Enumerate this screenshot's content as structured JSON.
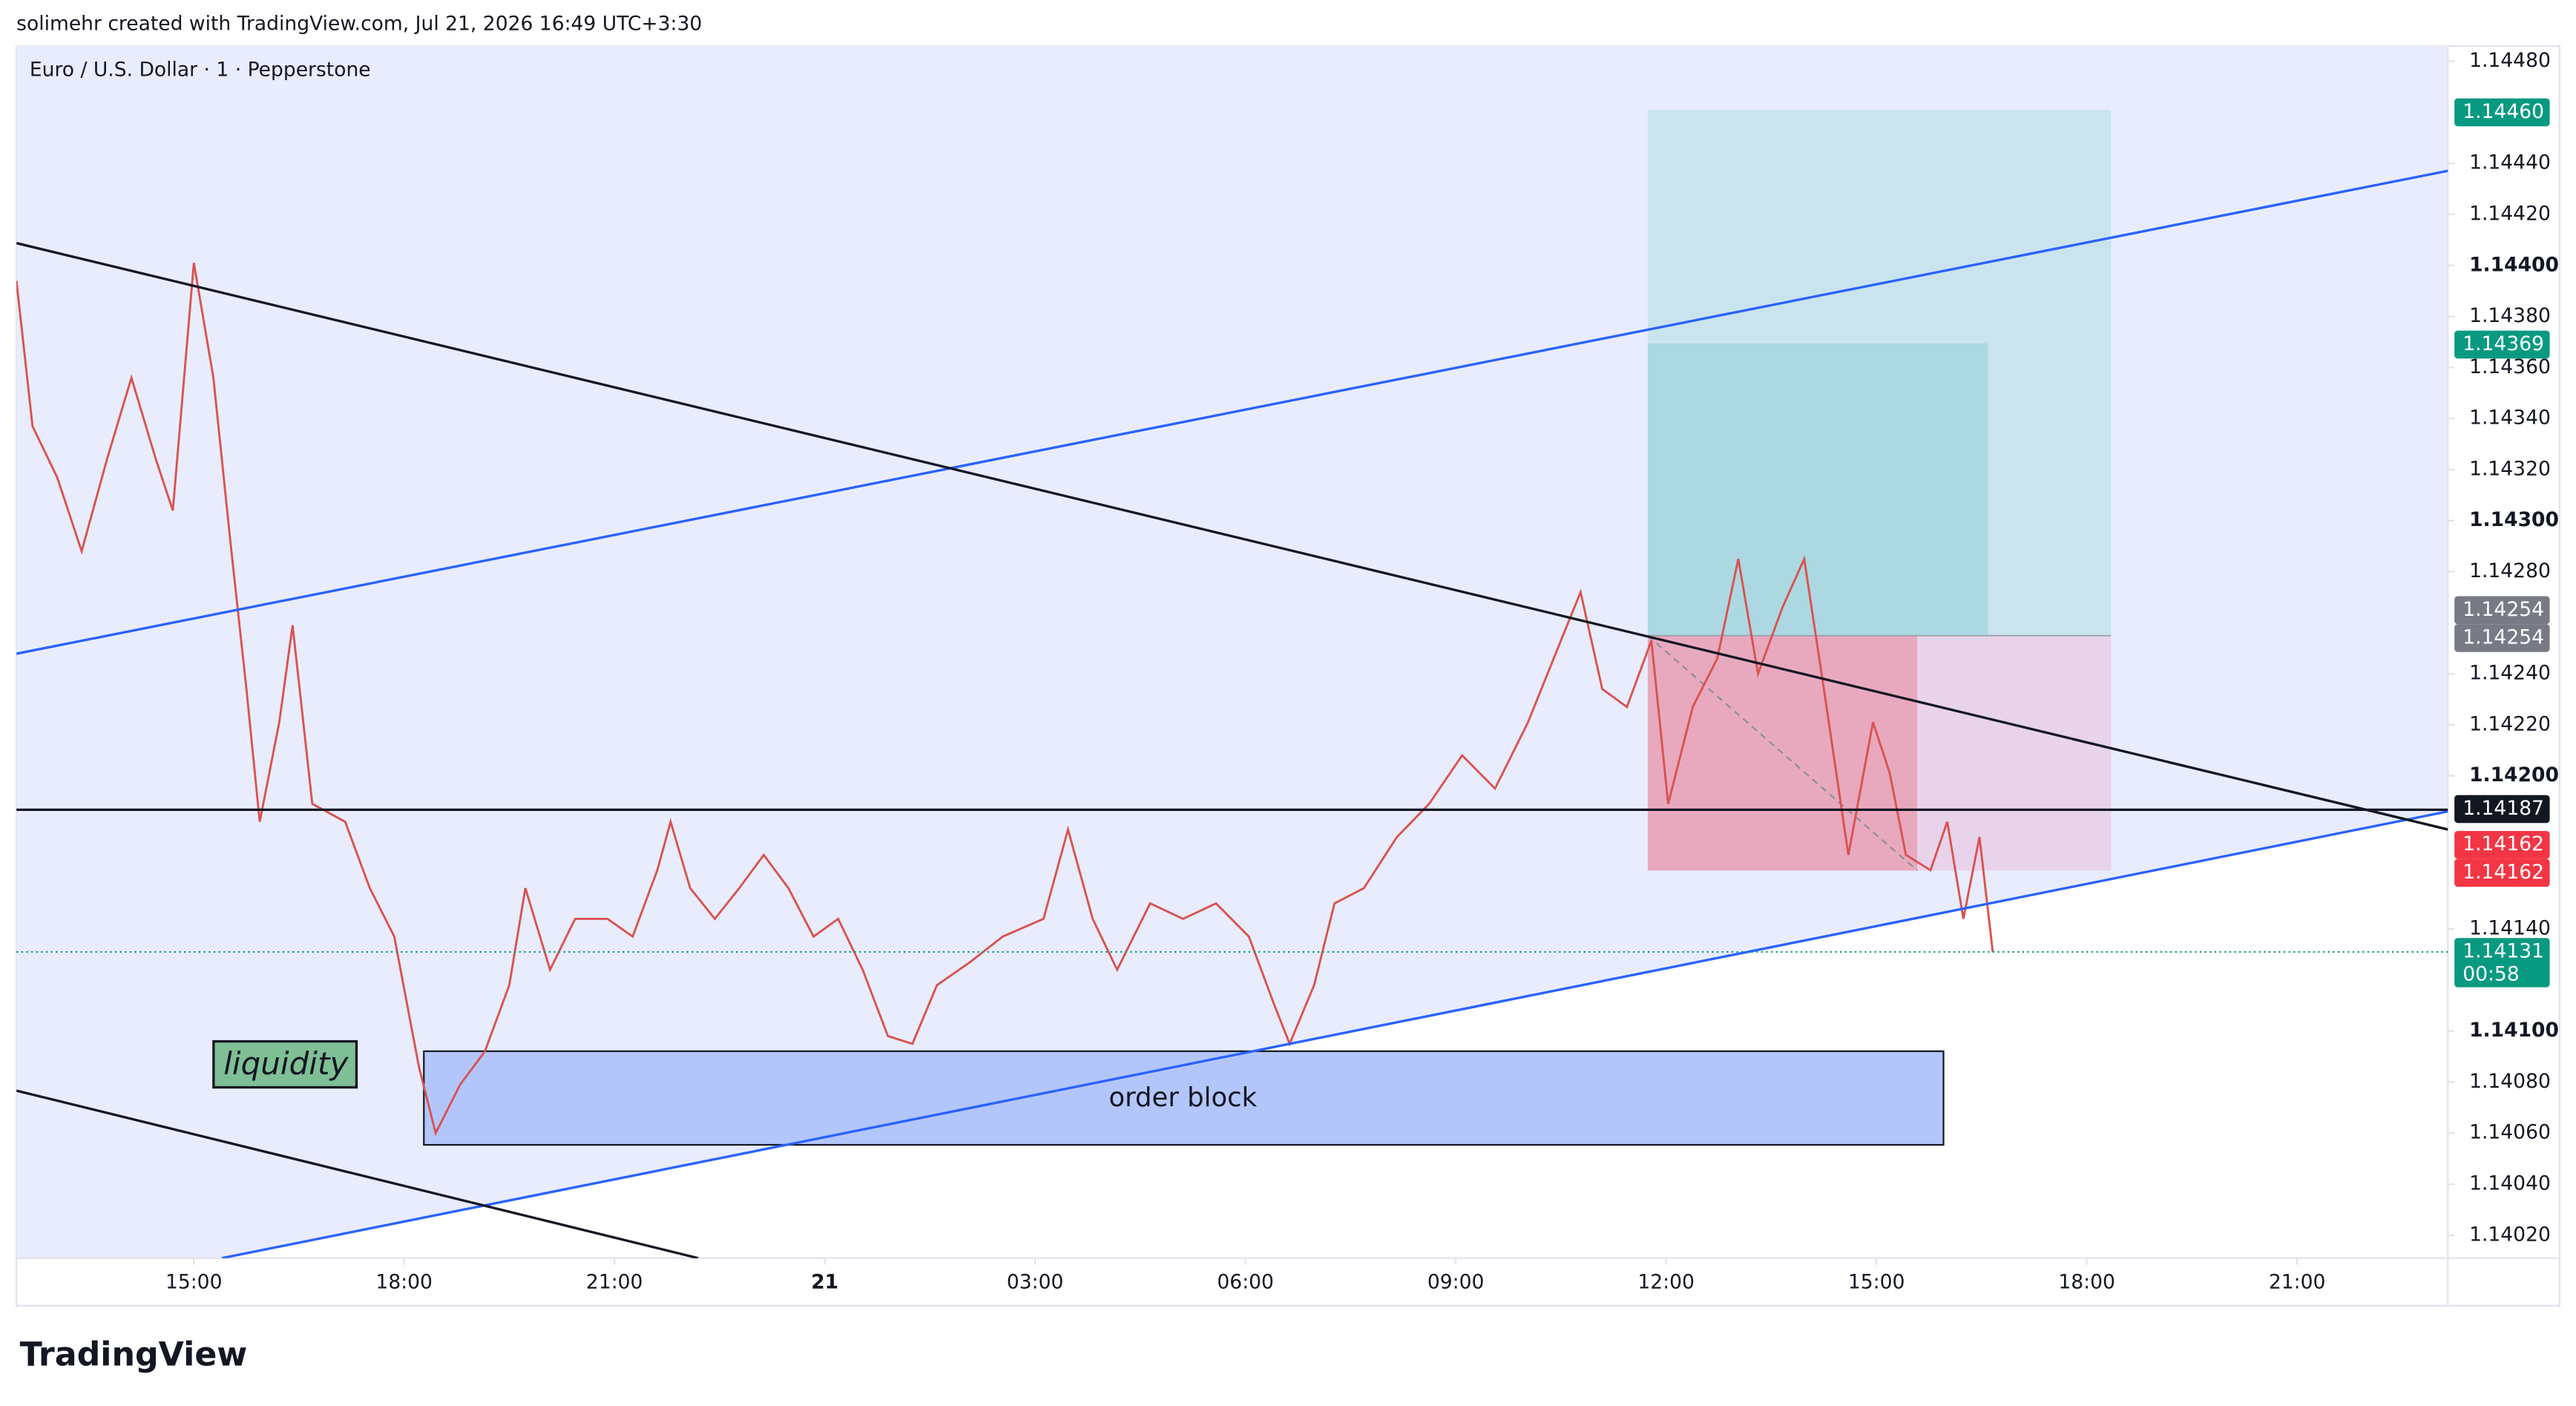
{
  "header": "solimehr created with TradingView.com, Jul 21, 2026 16:49 UTC+3:30",
  "brand": "TradingView",
  "chart_data": {
    "type": "line",
    "title": "Euro / U.S. Dollar · 1 · Pepperstone",
    "color": "#d9534f",
    "x": [
      12.47,
      12.7,
      13.05,
      13.4,
      13.76,
      14.11,
      14.46,
      14.7,
      15.0,
      15.28,
      15.52,
      15.75,
      15.94,
      16.22,
      16.41,
      16.69,
      17.16,
      17.51,
      17.86,
      18.21,
      18.45,
      18.8,
      19.15,
      19.5,
      19.73,
      20.08,
      20.44,
      20.9,
      21.26,
      21.61,
      21.8,
      22.08,
      22.43,
      22.78,
      23.13,
      23.48,
      23.84,
      24.19,
      24.54,
      24.9,
      25.25,
      25.6,
      26.07,
      26.54,
      27.12,
      27.47,
      27.82,
      28.17,
      28.64,
      29.11,
      29.58,
      30.05,
      30.4,
      30.63,
      30.98,
      31.27,
      31.69,
      32.16,
      32.62,
      33.09,
      33.56,
      34.03,
      34.5,
      34.78,
      35.09,
      35.44,
      35.79,
      36.03,
      36.38,
      36.73,
      37.03,
      37.31,
      37.66,
      37.97,
      38.25,
      38.6,
      38.95,
      39.19,
      39.42,
      39.77,
      40.01,
      40.24,
      40.47,
      40.66
    ],
    "values": [
      1.14394,
      1.14337,
      1.14317,
      1.14288,
      1.14324,
      1.14356,
      1.14324,
      1.14304,
      1.14401,
      1.14356,
      1.14292,
      1.14234,
      1.14182,
      1.14221,
      1.14259,
      1.14189,
      1.14182,
      1.14156,
      1.14137,
      1.14086,
      1.1406,
      1.14079,
      1.14092,
      1.14118,
      1.14156,
      1.14124,
      1.14144,
      1.14144,
      1.14137,
      1.14163,
      1.14182,
      1.14156,
      1.14144,
      1.14156,
      1.14169,
      1.14156,
      1.14137,
      1.14144,
      1.14124,
      1.14098,
      1.14095,
      1.14118,
      1.14127,
      1.14137,
      1.14144,
      1.14179,
      1.14144,
      1.14124,
      1.1415,
      1.14144,
      1.1415,
      1.14137,
      1.14111,
      1.14095,
      1.14118,
      1.1415,
      1.14156,
      1.14176,
      1.14189,
      1.14208,
      1.14195,
      1.14221,
      1.14253,
      1.14272,
      1.14234,
      1.14227,
      1.14253,
      1.14189,
      1.14227,
      1.14246,
      1.14285,
      1.1424,
      1.14266,
      1.14285,
      1.14234,
      1.14169,
      1.14221,
      1.14201,
      1.14169,
      1.14163,
      1.14182,
      1.14144,
      1.14176,
      1.14131
    ],
    "xlim": [
      12.47,
      47.15
    ],
    "xticks": [
      {
        "value": 15,
        "label": "15:00"
      },
      {
        "value": 18,
        "label": "18:00"
      },
      {
        "value": 21,
        "label": "21:00"
      },
      {
        "value": 24,
        "label": "21"
      },
      {
        "value": 27,
        "label": "03:00"
      },
      {
        "value": 30,
        "label": "06:00"
      },
      {
        "value": 33,
        "label": "09:00"
      },
      {
        "value": 36,
        "label": "12:00"
      },
      {
        "value": 39,
        "label": "15:00"
      },
      {
        "value": 42,
        "label": "18:00"
      },
      {
        "value": 45,
        "label": "21:00"
      }
    ],
    "ylim": [
      1.14011,
      1.14486
    ],
    "yticks": [
      {
        "value": 1.1448,
        "label": "1.14480"
      },
      {
        "value": 1.1444,
        "label": "1.14440"
      },
      {
        "value": 1.1442,
        "label": "1.14420"
      },
      {
        "value": 1.144,
        "label": "1.14400"
      },
      {
        "value": 1.1438,
        "label": "1.14380"
      },
      {
        "value": 1.1436,
        "label": "1.14360"
      },
      {
        "value": 1.1434,
        "label": "1.14340"
      },
      {
        "value": 1.1432,
        "label": "1.14320"
      },
      {
        "value": 1.143,
        "label": "1.14300"
      },
      {
        "value": 1.1428,
        "label": "1.14280"
      },
      {
        "value": 1.1424,
        "label": "1.14240"
      },
      {
        "value": 1.1422,
        "label": "1.14220"
      },
      {
        "value": 1.142,
        "label": "1.14200"
      },
      {
        "value": 1.1414,
        "label": "1.14140"
      },
      {
        "value": 1.141,
        "label": "1.14100"
      },
      {
        "value": 1.1408,
        "label": "1.14080"
      },
      {
        "value": 1.1406,
        "label": "1.14060"
      },
      {
        "value": 1.1404,
        "label": "1.14040"
      },
      {
        "value": 1.1402,
        "label": "1.14020"
      }
    ],
    "price_labels": [
      {
        "value": 1.1446,
        "label": "1.14460",
        "color": "#089981"
      },
      {
        "value": 1.14369,
        "label": "1.14369",
        "color": "#089981"
      },
      {
        "value": 1.14254,
        "label": "1.14254",
        "color": "#787b86"
      },
      {
        "value": 1.14254,
        "label": "1.14254",
        "color": "#787b86"
      },
      {
        "value": 1.14187,
        "label": "1.14187",
        "color": "#131722"
      },
      {
        "value": 1.14162,
        "label": "1.14162",
        "color": "#f23645"
      },
      {
        "value": 1.14162,
        "label": "1.14162",
        "color": "#f23645"
      },
      {
        "value": 1.14131,
        "label": "1.14131",
        "color": "#089981",
        "countdown": "00:58"
      }
    ],
    "annotations": [
      "liquidity",
      "order block"
    ]
  }
}
